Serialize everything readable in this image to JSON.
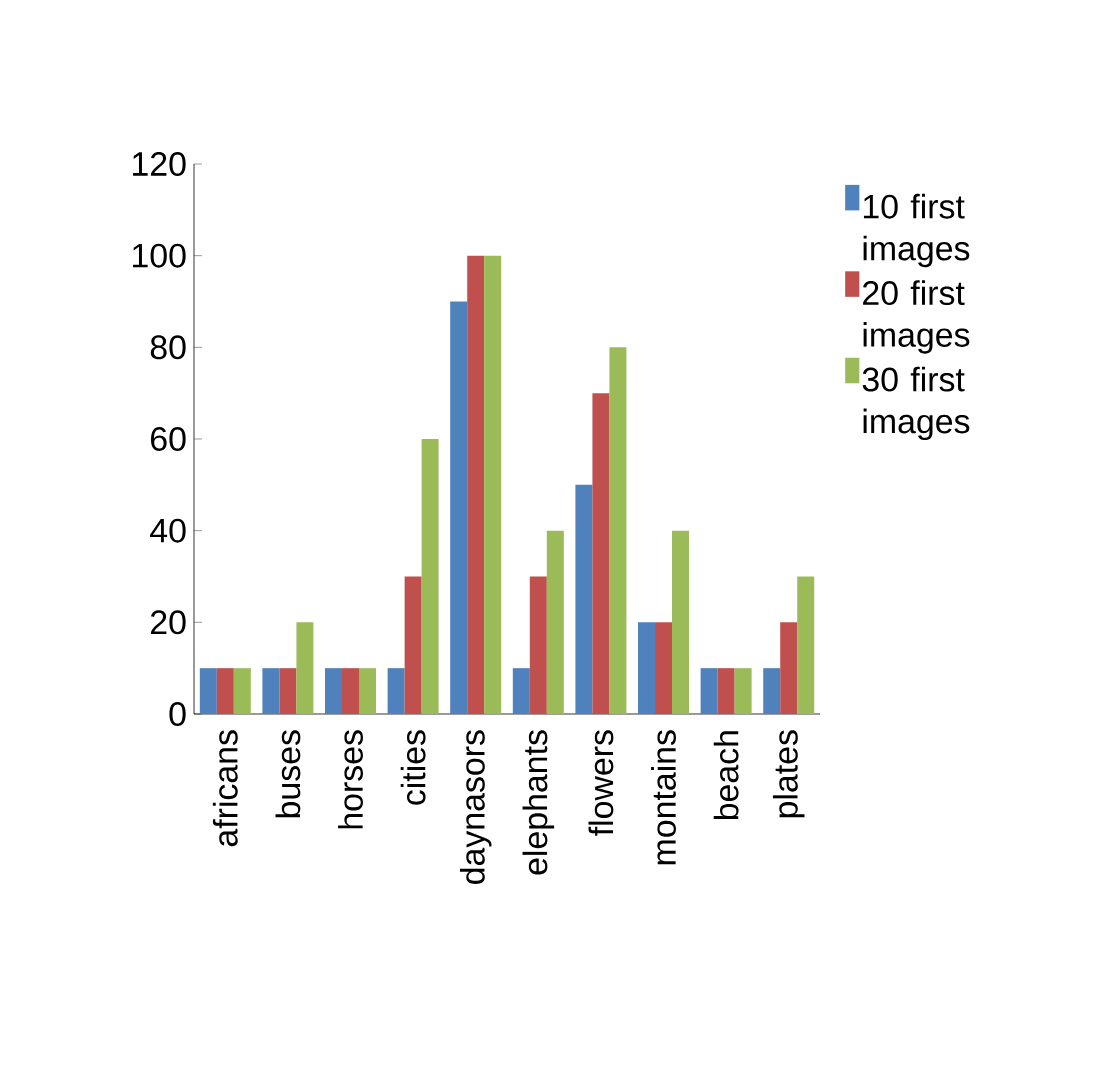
{
  "chart_data": {
    "type": "bar",
    "categories": [
      "africans",
      "buses",
      "horses",
      "cities",
      "daynasors",
      "elephants",
      "flowers",
      "montains",
      "beach",
      "plates"
    ],
    "series": [
      {
        "name": "10 first images",
        "color": "#4f81bd",
        "values": [
          10,
          10,
          10,
          10,
          90,
          10,
          50,
          20,
          10,
          10
        ]
      },
      {
        "name": "20 first images",
        "color": "#c0504d",
        "values": [
          10,
          10,
          10,
          30,
          100,
          30,
          70,
          20,
          10,
          20
        ]
      },
      {
        "name": "30 first images",
        "color": "#9bbb59",
        "values": [
          10,
          20,
          10,
          60,
          100,
          40,
          80,
          40,
          10,
          30
        ]
      }
    ],
    "ylim": [
      0,
      120
    ],
    "yticks": [
      0,
      20,
      40,
      60,
      80,
      100,
      120
    ],
    "grid": false,
    "legend": "right"
  }
}
